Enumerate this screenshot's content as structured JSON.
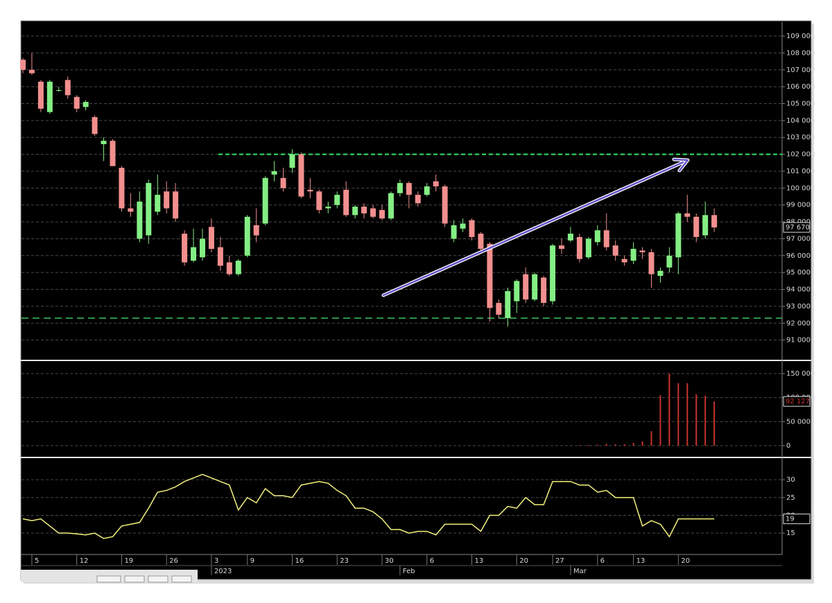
{
  "chart_data": [
    {
      "type": "candlestick",
      "categories": [
        null,
        "5",
        null,
        null,
        null,
        null,
        "12",
        null,
        null,
        null,
        null,
        "19",
        null,
        null,
        null,
        null,
        "26",
        null,
        null,
        null,
        null,
        "3",
        null,
        null,
        null,
        "9",
        null,
        null,
        null,
        null,
        "16",
        null,
        null,
        null,
        null,
        "23",
        null,
        null,
        null,
        null,
        "30",
        null,
        null,
        null,
        null,
        "6",
        null,
        null,
        null,
        null,
        "13",
        null,
        null,
        null,
        null,
        "20",
        null,
        null,
        null,
        "27",
        null,
        null,
        null,
        null,
        "6",
        null,
        null,
        null,
        "13",
        null,
        null,
        null,
        null,
        "20",
        null,
        null,
        null,
        null
      ],
      "period_labels": [
        null,
        null,
        null,
        null,
        null,
        null,
        null,
        null,
        null,
        null,
        null,
        null,
        null,
        null,
        null,
        null,
        null,
        null,
        null,
        null,
        null,
        "2023",
        null,
        null,
        null,
        null,
        null,
        null,
        null,
        null,
        null,
        null,
        null,
        null,
        null,
        null,
        null,
        null,
        null,
        null,
        null,
        null,
        "Feb",
        null,
        null,
        null,
        null,
        null,
        null,
        null,
        null,
        null,
        null,
        null,
        null,
        null,
        null,
        null,
        null,
        null,
        null,
        "Mar",
        null,
        null,
        null,
        null,
        null,
        null,
        null,
        null,
        null,
        null,
        null,
        null,
        null,
        null,
        null,
        null
      ],
      "open": [
        107600,
        107000,
        106300,
        104500,
        105800,
        106400,
        105400,
        104800,
        104200,
        102600,
        102800,
        101200,
        98800,
        97000,
        97200,
        98600,
        99800,
        99800,
        97300,
        95700,
        95900,
        97700,
        96500,
        95600,
        94900,
        96000,
        97800,
        97900,
        100800,
        100600,
        101200,
        102000,
        99900,
        99800,
        98800,
        99000,
        99900,
        98400,
        98900,
        98800,
        98700,
        98200,
        99700,
        100300,
        99600,
        99600,
        100400,
        100100,
        97000,
        97600,
        98100,
        97300,
        96700,
        93200,
        92300,
        93300,
        94900,
        93400,
        94700,
        93300,
        96600,
        96900,
        97100,
        95900,
        96800,
        97500,
        96600,
        95800,
        95700,
        96300,
        96200,
        94800,
        95300,
        95900,
        98500,
        98300,
        97200,
        98400
      ],
      "high": [
        107700,
        108000,
        106400,
        106400,
        106000,
        106600,
        105500,
        105200,
        104300,
        103000,
        102900,
        101300,
        99700,
        99800,
        100500,
        100800,
        100400,
        100300,
        97500,
        97600,
        97600,
        98200,
        97100,
        96000,
        95800,
        98400,
        98800,
        100700,
        101600,
        101200,
        102300,
        102100,
        100600,
        99900,
        99200,
        99800,
        100400,
        99000,
        99100,
        99000,
        99000,
        99800,
        100500,
        100400,
        99800,
        100300,
        100800,
        100200,
        98100,
        98200,
        98200,
        97400,
        96800,
        93400,
        94100,
        94600,
        95300,
        95000,
        94800,
        96700,
        97000,
        97700,
        97300,
        97100,
        97800,
        98500,
        96900,
        96000,
        96800,
        96500,
        96400,
        95300,
        96500,
        98600,
        99600,
        98500,
        99200,
        98800
      ],
      "low": [
        106800,
        106700,
        104500,
        104400,
        105700,
        105300,
        104500,
        104600,
        103100,
        101600,
        101300,
        98600,
        98300,
        96800,
        96700,
        98400,
        98500,
        98000,
        95400,
        95600,
        95700,
        96200,
        95100,
        94800,
        94800,
        95900,
        96800,
        97800,
        100400,
        99800,
        100900,
        99400,
        99400,
        98500,
        98500,
        98800,
        98300,
        98200,
        98200,
        98200,
        98100,
        98100,
        99500,
        98800,
        98900,
        99500,
        99800,
        97700,
        96800,
        97400,
        96900,
        96200,
        92100,
        92300,
        91800,
        92600,
        93200,
        93300,
        93000,
        93100,
        96100,
        96800,
        95600,
        95800,
        96600,
        96300,
        95700,
        95400,
        95500,
        95800,
        94100,
        94400,
        95000,
        94900,
        98000,
        96800,
        97000,
        97400
      ],
      "close": [
        107000,
        106800,
        104700,
        106300,
        105800,
        105500,
        104700,
        105100,
        103200,
        102800,
        101300,
        98800,
        98600,
        99200,
        100300,
        99600,
        98800,
        98200,
        95600,
        96500,
        97000,
        96400,
        95400,
        94900,
        95700,
        98300,
        97200,
        100600,
        101000,
        100000,
        102000,
        99500,
        99800,
        98700,
        98900,
        99600,
        98400,
        98900,
        98500,
        98300,
        98200,
        99700,
        100300,
        99600,
        99100,
        100100,
        100100,
        97900,
        97800,
        97900,
        97100,
        96400,
        92900,
        92500,
        93900,
        94500,
        93400,
        94900,
        93200,
        96600,
        96400,
        97300,
        95800,
        97000,
        97500,
        96500,
        96000,
        95600,
        96400,
        96200,
        94900,
        95100,
        96000,
        98500,
        98300,
        97100,
        98400,
        97670
      ],
      "colors": {
        "up": "#84ee84",
        "down": "#f28f8f"
      },
      "ylim": [
        90000,
        109700
      ],
      "yticks": [
        {
          "value": 91000,
          "label": "91 000"
        },
        {
          "value": 92000,
          "label": "92 000"
        },
        {
          "value": 93000,
          "label": "93 000"
        },
        {
          "value": 94000,
          "label": "94 000"
        },
        {
          "value": 95000,
          "label": "95 000"
        },
        {
          "value": 96000,
          "label": "96 000"
        },
        {
          "value": 97000,
          "label": "97 000"
        },
        {
          "value": 98000,
          "label": "98 000"
        },
        {
          "value": 99000,
          "label": "99 000"
        },
        {
          "value": 100000,
          "label": "100 000"
        },
        {
          "value": 101000,
          "label": "101 000"
        },
        {
          "value": 102000,
          "label": "102 000"
        },
        {
          "value": 103000,
          "label": "103 000"
        },
        {
          "value": 104000,
          "label": "104 000"
        },
        {
          "value": 105000,
          "label": "105 000"
        },
        {
          "value": 106000,
          "label": "106 000"
        },
        {
          "value": 107000,
          "label": "107 000"
        },
        {
          "value": 108000,
          "label": "108 000"
        },
        {
          "value": 109000,
          "label": "109 000"
        }
      ],
      "levels": [
        {
          "value": 102000,
          "color": "#2ee86a"
        },
        {
          "value": 92300,
          "color": "#3cc85c"
        }
      ],
      "last": {
        "value": 97670,
        "label": "97 670"
      },
      "grid": true
    },
    {
      "type": "bar",
      "values": [
        0,
        0,
        0,
        0,
        0,
        0,
        0,
        0,
        0,
        0,
        0,
        0,
        0,
        0,
        0,
        0,
        0,
        0,
        0,
        0,
        0,
        0,
        0,
        0,
        0,
        0,
        0,
        0,
        0,
        0,
        0,
        0,
        0,
        0,
        0,
        0,
        0,
        0,
        0,
        0,
        0,
        0,
        0,
        0,
        0,
        0,
        0,
        0,
        0,
        0,
        0,
        0,
        0,
        0,
        0,
        0,
        0,
        0,
        0,
        0,
        500,
        800,
        1200,
        1500,
        2000,
        3500,
        2500,
        3000,
        5500,
        9000,
        30000,
        105000,
        150000,
        130000,
        130000,
        107000,
        104000,
        92127
      ],
      "color": "#c8342c",
      "ylim": [
        -17300,
        165900
      ],
      "yticks": [
        0,
        {
          "value": 50000,
          "label": "50 000"
        },
        {
          "value": 100000,
          "label": "100 000"
        },
        {
          "value": 150000,
          "label": "150 000"
        }
      ],
      "last": {
        "value": 92127,
        "label": "92 127"
      },
      "grid": true
    },
    {
      "type": "line",
      "values": [
        19,
        18.5,
        19,
        17,
        15,
        15,
        14.8,
        14.5,
        15,
        13.5,
        14,
        17,
        17.5,
        18,
        22,
        26.5,
        27,
        28,
        29.5,
        30.5,
        31.5,
        30.5,
        29.5,
        28.5,
        21.5,
        25,
        23.5,
        27.5,
        25.5,
        25.5,
        25,
        28.5,
        29,
        29.5,
        29,
        27,
        25.5,
        22,
        22,
        21,
        19,
        16,
        16,
        15,
        15.5,
        15.5,
        14.5,
        17.5,
        17.5,
        17.5,
        17.5,
        15.5,
        20,
        20,
        22.5,
        22,
        25,
        23,
        23,
        29.5,
        29.5,
        29.5,
        28.5,
        28.5,
        26.5,
        27,
        25,
        25,
        25,
        17,
        18.5,
        17.5,
        14,
        19,
        19,
        19,
        19,
        19
      ],
      "color": "#f4f27c",
      "ylim": [
        9,
        34.7
      ],
      "yticks": [
        15,
        20,
        25,
        30
      ],
      "last": {
        "value": 19,
        "label": "19"
      },
      "grid": true
    }
  ]
}
